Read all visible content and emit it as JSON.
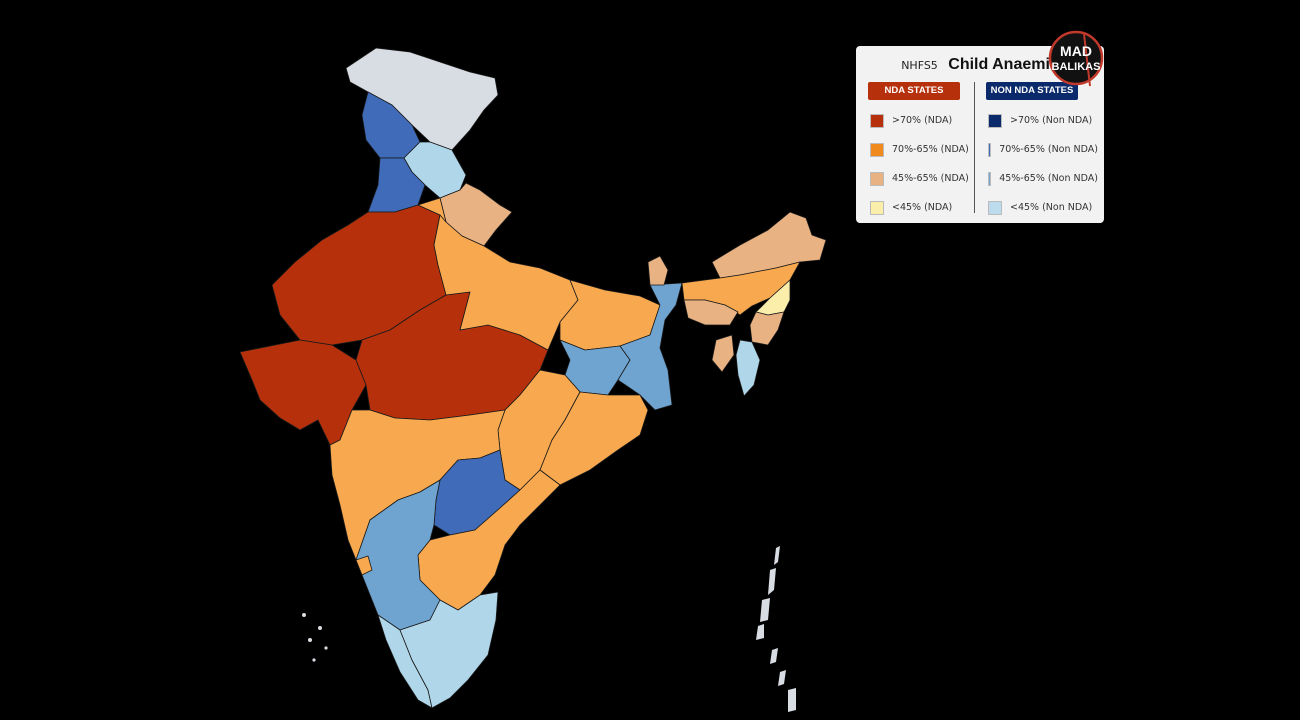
{
  "legend": {
    "subtitle": "NHFS5",
    "title": "Child Anaemia",
    "nda": {
      "header": "NDA STATES",
      "header_color": "#b5300b",
      "items": [
        {
          "label": ">70% (NDA)",
          "color": "#b5300b"
        },
        {
          "label": "70%-65% (NDA)",
          "color": "#f08a1c"
        },
        {
          "label": "45%-65% (NDA)",
          "color": "#e9b283"
        },
        {
          "label": "<45% (NDA)",
          "color": "#fbeeaa"
        }
      ]
    },
    "non_nda": {
      "header": "NON NDA STATES",
      "header_color": "#0b2a6b",
      "items": [
        {
          "label": ">70% (Non NDA)",
          "color": "#0b2a6b"
        },
        {
          "label": "70%-65% (Non NDA)",
          "color": "#3f6bb8"
        },
        {
          "label": "45%-65% (Non NDA)",
          "color": "#6fa4d0"
        },
        {
          "label": "<45% (Non NDA)",
          "color": "#bcdced"
        }
      ]
    }
  },
  "logo": {
    "line1": "MAD",
    "line2": "BALIKAS"
  },
  "map": {
    "colors": {
      "nda_high": "#b5300b",
      "nda_mid": "#f8a94f",
      "nda_low": "#e9b283",
      "nda_lowest": "#fbeeaa",
      "non_high": "#0b2a6b",
      "non_mid": "#3f6bb8",
      "non_low": "#6fa4d0",
      "non_lowest": "#b0d6ea",
      "no_data": "#d8dde3"
    }
  }
}
